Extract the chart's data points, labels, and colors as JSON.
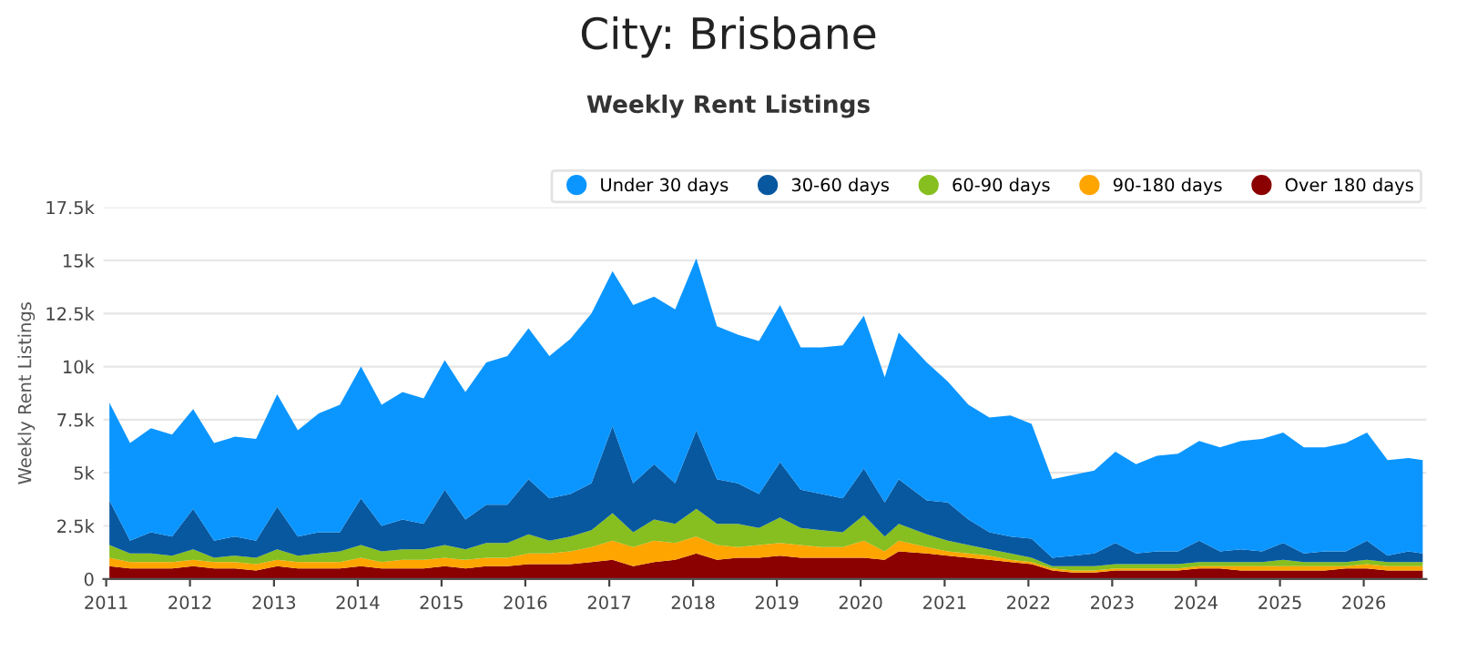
{
  "chart_data": {
    "type": "area",
    "title": "City: Brisbane",
    "subtitle": "Weekly Rent Listings",
    "ylabel": "Weekly Rent Listings",
    "stacked": true,
    "grid": "y",
    "legend": "top right",
    "x": [
      "2011-01",
      "2011-04",
      "2011-07",
      "2011-10",
      "2012-01",
      "2012-04",
      "2012-07",
      "2012-10",
      "2013-01",
      "2013-04",
      "2013-07",
      "2013-10",
      "2014-01",
      "2014-04",
      "2014-07",
      "2014-10",
      "2015-01",
      "2015-04",
      "2015-07",
      "2015-10",
      "2016-01",
      "2016-04",
      "2016-07",
      "2016-10",
      "2017-01",
      "2017-04",
      "2017-07",
      "2017-10",
      "2018-01",
      "2018-04",
      "2018-07",
      "2018-10",
      "2019-01",
      "2019-04",
      "2019-07",
      "2019-10",
      "2020-01",
      "2020-04",
      "2020-06",
      "2020-10",
      "2021-01",
      "2021-04",
      "2021-07",
      "2021-10",
      "2022-01",
      "2022-04",
      "2022-07",
      "2022-10",
      "2023-01",
      "2023-04",
      "2023-07",
      "2023-10",
      "2024-01",
      "2024-04",
      "2024-07",
      "2024-10",
      "2025-01",
      "2025-04",
      "2025-07",
      "2025-10",
      "2026-01",
      "2026-04",
      "2026-07",
      "2026-09"
    ],
    "series": [
      {
        "name": "Over 180 days",
        "color": "#8b0000",
        "values": [
          600,
          500,
          500,
          500,
          600,
          500,
          500,
          400,
          600,
          500,
          500,
          500,
          600,
          500,
          500,
          500,
          600,
          500,
          600,
          600,
          700,
          700,
          700,
          800,
          900,
          600,
          800,
          900,
          1200,
          900,
          1000,
          1000,
          1100,
          1000,
          1000,
          1000,
          1000,
          900,
          1300,
          1200,
          1100,
          1000,
          900,
          800,
          700,
          400,
          300,
          300,
          400,
          400,
          400,
          400,
          500,
          500,
          400,
          400,
          400,
          400,
          400,
          500,
          500,
          400,
          400,
          400
        ]
      },
      {
        "name": "90-180 days",
        "color": "#ffa500",
        "values": [
          400,
          300,
          300,
          300,
          300,
          300,
          300,
          300,
          300,
          300,
          300,
          300,
          400,
          300,
          400,
          400,
          400,
          400,
          400,
          400,
          500,
          500,
          600,
          700,
          900,
          900,
          1000,
          800,
          800,
          700,
          500,
          600,
          600,
          600,
          500,
          500,
          800,
          400,
          500,
          300,
          200,
          200,
          200,
          100,
          100,
          100,
          100,
          100,
          100,
          100,
          100,
          100,
          100,
          100,
          200,
          200,
          200,
          200,
          200,
          100,
          200,
          200,
          200,
          200
        ]
      },
      {
        "name": "60-90 days",
        "color": "#86bf1f",
        "values": [
          600,
          400,
          400,
          300,
          500,
          200,
          300,
          300,
          500,
          300,
          400,
          500,
          600,
          500,
          500,
          500,
          600,
          500,
          700,
          700,
          900,
          600,
          700,
          800,
          1300,
          700,
          1000,
          900,
          1300,
          1000,
          1100,
          800,
          1200,
          800,
          800,
          700,
          1200,
          700,
          800,
          600,
          500,
          400,
          300,
          300,
          200,
          100,
          200,
          200,
          200,
          200,
          200,
          200,
          200,
          200,
          200,
          200,
          300,
          200,
          200,
          200,
          200,
          200,
          200,
          200
        ]
      },
      {
        "name": "30-60 days",
        "color": "#0858a0",
        "values": [
          2100,
          600,
          1000,
          900,
          1900,
          800,
          900,
          800,
          2000,
          900,
          1000,
          900,
          2200,
          1200,
          1400,
          1200,
          2600,
          1400,
          1800,
          1800,
          2600,
          2000,
          2000,
          2200,
          4100,
          2300,
          2600,
          1900,
          3700,
          2100,
          1900,
          1600,
          2600,
          1800,
          1700,
          1600,
          2200,
          1600,
          2100,
          1600,
          1800,
          1200,
          800,
          800,
          900,
          400,
          500,
          600,
          1000,
          500,
          600,
          600,
          1000,
          500,
          600,
          500,
          800,
          400,
          500,
          500,
          900,
          300,
          500,
          400
        ]
      },
      {
        "name": "Under 30 days",
        "color": "#0b96ff",
        "values": [
          4600,
          4600,
          4900,
          4800,
          4700,
          4600,
          4700,
          4800,
          5300,
          5000,
          5600,
          6000,
          6200,
          5700,
          6000,
          5900,
          6100,
          6000,
          6700,
          7000,
          7100,
          6700,
          7300,
          8000,
          7300,
          8400,
          7900,
          8200,
          8100,
          7200,
          7000,
          7200,
          7400,
          6700,
          6900,
          7200,
          7200,
          5900,
          6900,
          6500,
          5700,
          5400,
          5400,
          5700,
          5400,
          3700,
          3800,
          3900,
          4300,
          4200,
          4500,
          4600,
          4700,
          4900,
          5100,
          5300,
          5200,
          5000,
          4900,
          5100,
          5100,
          4500,
          4400,
          4400
        ]
      }
    ],
    "xlim": [
      "2010-12-20",
      "2026-10-01"
    ],
    "xticks": [
      {
        "value": "2011-01-01",
        "label": "2011"
      },
      {
        "value": "2012-01-01",
        "label": "2012"
      },
      {
        "value": "2013-01-01",
        "label": "2013"
      },
      {
        "value": "2014-01-01",
        "label": "2014"
      },
      {
        "value": "2015-01-01",
        "label": "2015"
      },
      {
        "value": "2016-01-01",
        "label": "2016"
      },
      {
        "value": "2017-01-01",
        "label": "2017"
      },
      {
        "value": "2018-01-01",
        "label": "2018"
      },
      {
        "value": "2019-01-01",
        "label": "2019"
      },
      {
        "value": "2020-01-01",
        "label": "2020"
      },
      {
        "value": "2021-01-01",
        "label": "2021"
      },
      {
        "value": "2022-01-01",
        "label": "2022"
      },
      {
        "value": "2023-01-01",
        "label": "2023"
      },
      {
        "value": "2024-01-01",
        "label": "2024"
      },
      {
        "value": "2025-01-01",
        "label": "2025"
      },
      {
        "value": "2026-01-01",
        "label": "2026"
      }
    ],
    "ylim": [
      0,
      17500
    ],
    "yticks": [
      0,
      {
        "value": 2500,
        "label": "2.5k"
      },
      {
        "value": 5000,
        "label": "5k"
      },
      {
        "value": 7500,
        "label": "7.5k"
      },
      {
        "value": 10000,
        "label": "10k"
      },
      {
        "value": 12500,
        "label": "12.5k"
      },
      {
        "value": 15000,
        "label": "15k"
      },
      {
        "value": 17500,
        "label": "17.5k"
      }
    ]
  }
}
